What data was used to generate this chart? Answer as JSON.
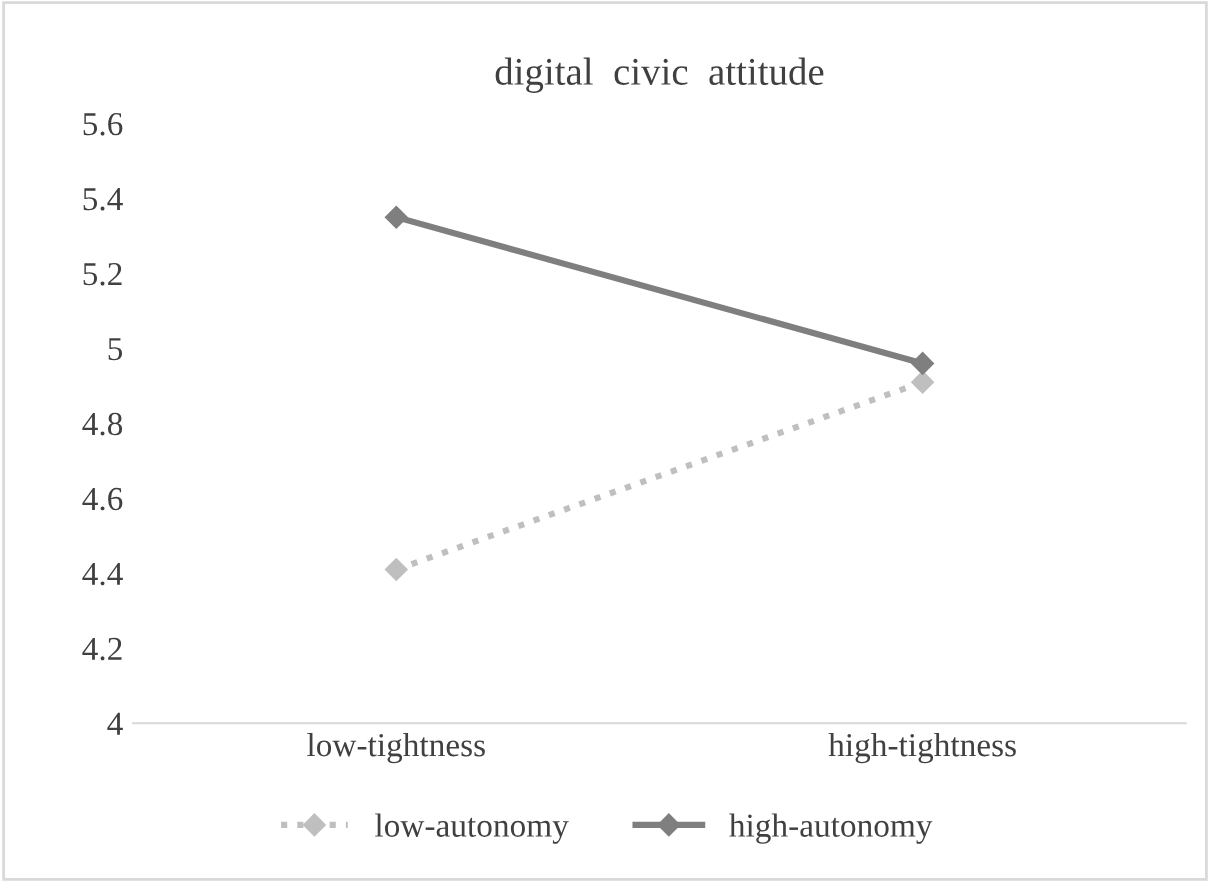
{
  "chart_data": {
    "type": "line",
    "title": "digital  civic  attitude",
    "categories": [
      "low-tightness",
      "high-tightness"
    ],
    "series": [
      {
        "name": "low-autonomy",
        "color": "#bfbfbf",
        "values": [
          4.41,
          4.91
        ],
        "line_style": "dotted"
      },
      {
        "name": "high-autonomy",
        "color": "#7f7f7f",
        "values": [
          5.35,
          4.96
        ],
        "line_style": "solid"
      }
    ],
    "ylim": [
      4,
      5.6
    ],
    "yticks": [
      4,
      4.2,
      4.4,
      4.6,
      4.8,
      5,
      5.2,
      5.4,
      5.6
    ],
    "marker": "diamond",
    "grid": false,
    "legend": "bottom"
  }
}
